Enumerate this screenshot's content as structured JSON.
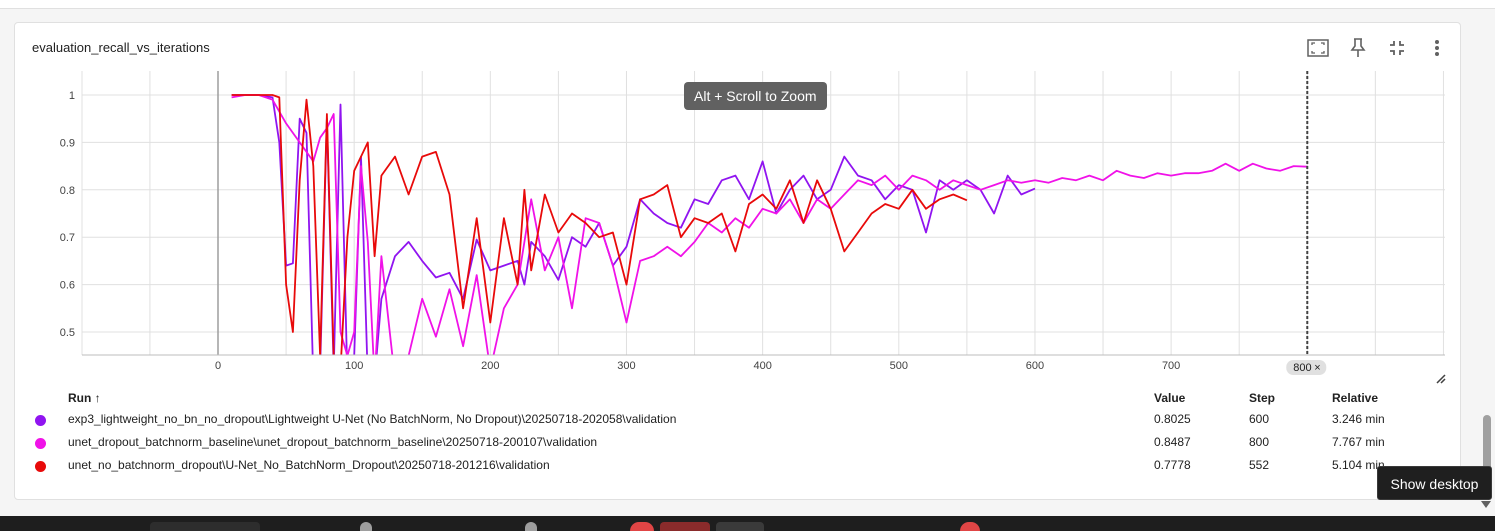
{
  "card": {
    "title": "evaluation_recall_vs_iterations",
    "toolbar": {
      "fit_icon": "fit-to-screen-icon",
      "pin_icon": "pin-icon",
      "collapse_icon": "collapse-icon",
      "menu_icon": "more-vert-icon"
    }
  },
  "zoom_hint": "Alt + Scroll to Zoom",
  "step_marker": {
    "label": "800",
    "close": "×"
  },
  "colors": {
    "series_1": "#9014f0",
    "series_2": "#f012e8",
    "series_3": "#e80a0a",
    "grid": "#e0e0e0",
    "axis": "#9e9e9e"
  },
  "chart_data": {
    "type": "line",
    "title": "evaluation_recall_vs_iterations",
    "xlim": [
      0,
      900
    ],
    "ylim": [
      0.45,
      1.05
    ],
    "x_ticks": [
      0,
      100,
      200,
      300,
      400,
      500,
      600,
      700
    ],
    "y_ticks": [
      0.5,
      0.6,
      0.7,
      0.8,
      0.9,
      1
    ],
    "grid": true,
    "series": [
      {
        "name": "exp3_lightweight_no_bn_no_dropout\\Lightweight U-Net (No BatchNorm, No Dropout)\\20250718-202058\\validation",
        "color": "#9014f0",
        "x": [
          10,
          20,
          30,
          40,
          45,
          50,
          55,
          60,
          65,
          70,
          75,
          80,
          85,
          90,
          95,
          100,
          105,
          110,
          115,
          120,
          130,
          140,
          150,
          160,
          170,
          180,
          190,
          200,
          210,
          220,
          225,
          230,
          240,
          250,
          260,
          270,
          280,
          290,
          300,
          310,
          320,
          330,
          340,
          350,
          360,
          370,
          380,
          390,
          400,
          410,
          420,
          430,
          440,
          450,
          460,
          470,
          480,
          490,
          500,
          510,
          520,
          530,
          540,
          550,
          560,
          570,
          580,
          590,
          600
        ],
        "y": [
          1.0,
          1.0,
          1.0,
          0.995,
          0.9,
          0.64,
          0.645,
          0.95,
          0.92,
          0.4,
          0.42,
          0.95,
          0.42,
          0.98,
          0.4,
          0.45,
          0.87,
          0.4,
          0.4,
          0.57,
          0.66,
          0.69,
          0.65,
          0.615,
          0.625,
          0.57,
          0.695,
          0.63,
          0.64,
          0.65,
          0.6,
          0.69,
          0.66,
          0.61,
          0.7,
          0.68,
          0.73,
          0.64,
          0.68,
          0.78,
          0.75,
          0.73,
          0.72,
          0.78,
          0.77,
          0.82,
          0.83,
          0.78,
          0.86,
          0.75,
          0.8,
          0.83,
          0.78,
          0.8,
          0.87,
          0.83,
          0.82,
          0.78,
          0.81,
          0.8,
          0.71,
          0.82,
          0.8,
          0.82,
          0.8,
          0.75,
          0.83,
          0.79,
          0.8025
        ]
      },
      {
        "name": "unet_dropout_batchnorm_baseline\\unet_dropout_batchnorm_baseline\\20250718-200107\\validation",
        "color": "#f012e8",
        "x": [
          10,
          20,
          30,
          40,
          50,
          60,
          70,
          75,
          80,
          85,
          90,
          95,
          100,
          105,
          110,
          115,
          120,
          130,
          140,
          150,
          160,
          170,
          180,
          190,
          200,
          210,
          220,
          230,
          240,
          250,
          260,
          270,
          280,
          290,
          300,
          310,
          320,
          330,
          340,
          350,
          360,
          370,
          380,
          390,
          400,
          410,
          420,
          430,
          440,
          450,
          460,
          470,
          480,
          490,
          500,
          510,
          520,
          530,
          540,
          550,
          560,
          570,
          580,
          590,
          600,
          610,
          620,
          630,
          640,
          650,
          660,
          670,
          680,
          690,
          700,
          710,
          720,
          730,
          740,
          750,
          760,
          770,
          780,
          790,
          800
        ],
        "y": [
          0.995,
          1.0,
          1.0,
          0.99,
          0.94,
          0.9,
          0.86,
          0.91,
          0.93,
          0.96,
          0.5,
          0.45,
          0.5,
          0.85,
          0.69,
          0.4,
          0.66,
          0.4,
          0.45,
          0.57,
          0.49,
          0.59,
          0.47,
          0.62,
          0.42,
          0.55,
          0.6,
          0.78,
          0.63,
          0.7,
          0.55,
          0.74,
          0.73,
          0.64,
          0.52,
          0.65,
          0.66,
          0.68,
          0.66,
          0.69,
          0.73,
          0.71,
          0.74,
          0.72,
          0.76,
          0.75,
          0.78,
          0.73,
          0.78,
          0.76,
          0.79,
          0.82,
          0.81,
          0.83,
          0.8,
          0.83,
          0.82,
          0.8,
          0.82,
          0.81,
          0.8,
          0.81,
          0.82,
          0.815,
          0.82,
          0.815,
          0.825,
          0.82,
          0.83,
          0.82,
          0.84,
          0.83,
          0.825,
          0.835,
          0.83,
          0.835,
          0.835,
          0.84,
          0.855,
          0.84,
          0.855,
          0.845,
          0.84,
          0.85,
          0.8487
        ]
      },
      {
        "name": "unet_no_batchnorm_dropout\\U-Net_No_BatchNorm_Dropout\\20250718-201216\\validation",
        "color": "#e80a0a",
        "x": [
          10,
          20,
          30,
          40,
          45,
          50,
          55,
          60,
          65,
          70,
          75,
          80,
          85,
          90,
          95,
          100,
          105,
          110,
          115,
          120,
          130,
          140,
          150,
          160,
          170,
          180,
          190,
          200,
          210,
          220,
          225,
          230,
          240,
          250,
          260,
          270,
          280,
          290,
          300,
          310,
          320,
          330,
          340,
          350,
          360,
          370,
          380,
          390,
          400,
          410,
          420,
          430,
          440,
          450,
          460,
          470,
          480,
          490,
          500,
          510,
          520,
          530,
          540,
          550
        ],
        "y": [
          1.0,
          1.0,
          1.0,
          1.0,
          0.995,
          0.6,
          0.5,
          0.82,
          0.99,
          0.85,
          0.45,
          0.96,
          0.45,
          0.42,
          0.7,
          0.84,
          0.87,
          0.9,
          0.66,
          0.83,
          0.87,
          0.79,
          0.87,
          0.88,
          0.79,
          0.55,
          0.74,
          0.52,
          0.74,
          0.6,
          0.8,
          0.63,
          0.79,
          0.71,
          0.75,
          0.73,
          0.7,
          0.71,
          0.6,
          0.78,
          0.79,
          0.81,
          0.7,
          0.74,
          0.73,
          0.75,
          0.67,
          0.77,
          0.79,
          0.76,
          0.82,
          0.73,
          0.82,
          0.76,
          0.67,
          0.71,
          0.75,
          0.77,
          0.76,
          0.8,
          0.76,
          0.78,
          0.79,
          0.7778
        ]
      }
    ]
  },
  "table": {
    "headers": {
      "run": "Run ↑",
      "value": "Value",
      "step": "Step",
      "relative": "Relative"
    },
    "rows": [
      {
        "color": "#9014f0",
        "name": "exp3_lightweight_no_bn_no_dropout\\Lightweight U-Net (No BatchNorm, No Dropout)\\20250718-202058\\validation",
        "value": "0.8025",
        "step": "600",
        "relative": "3.246 min"
      },
      {
        "color": "#f012e8",
        "name": "unet_dropout_batchnorm_baseline\\unet_dropout_batchnorm_baseline\\20250718-200107\\validation",
        "value": "0.8487",
        "step": "800",
        "relative": "7.767 min"
      },
      {
        "color": "#e80a0a",
        "name": "unet_no_batchnorm_dropout\\U-Net_No_BatchNorm_Dropout\\20250718-201216\\validation",
        "value": "0.7778",
        "step": "552",
        "relative": "5.104 min"
      }
    ]
  },
  "desktop_tooltip": "Show desktop"
}
